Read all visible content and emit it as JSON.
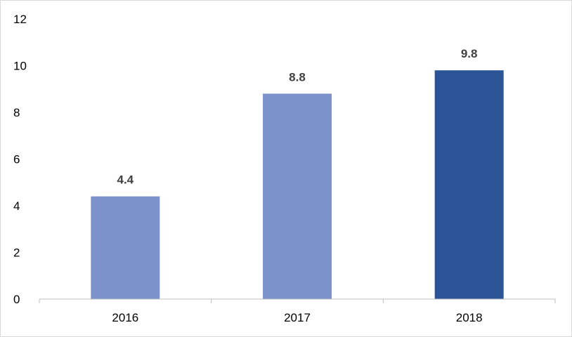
{
  "chart_data": {
    "type": "bar",
    "title": "",
    "xlabel": "",
    "ylabel": "",
    "categories": [
      "2016",
      "2017",
      "2018"
    ],
    "values": [
      4.4,
      8.8,
      9.8
    ],
    "data_labels": [
      "4.4",
      "8.8",
      "9.8"
    ],
    "bar_colors": [
      "#7b93ca",
      "#7b93ca",
      "#2b5597"
    ],
    "ylim": [
      0,
      12
    ],
    "yticks": [
      0,
      2,
      4,
      6,
      8,
      10,
      12
    ],
    "ytick_labels": [
      "0",
      "2",
      "4",
      "6",
      "8",
      "10",
      "12"
    ],
    "grid": false,
    "legend": "none",
    "axis_color": "#bfbfbf",
    "label_color": "#404040"
  }
}
